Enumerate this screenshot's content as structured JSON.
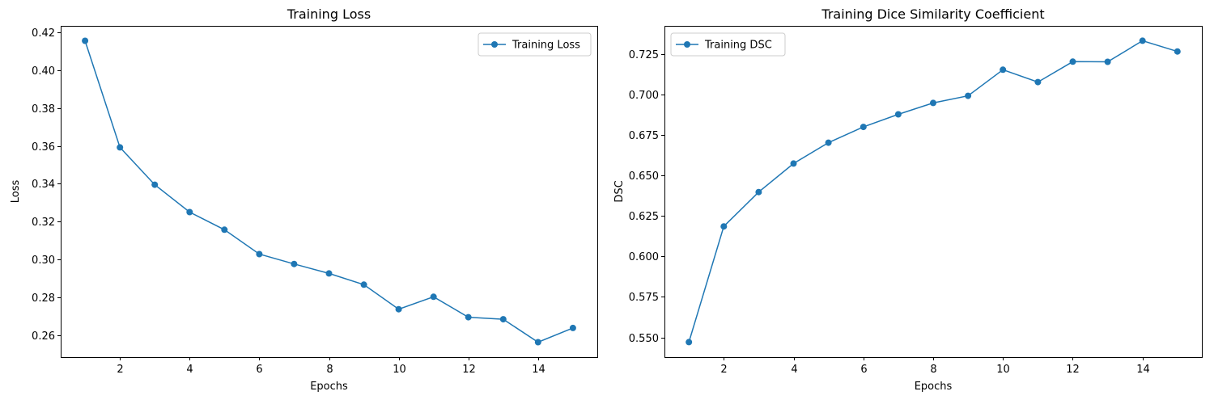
{
  "chart_data": [
    {
      "type": "line",
      "title": "Training Loss",
      "xlabel": "Epochs",
      "ylabel": "Loss",
      "x": [
        1,
        2,
        3,
        4,
        5,
        6,
        7,
        8,
        9,
        10,
        11,
        12,
        13,
        14,
        15
      ],
      "series": [
        {
          "name": "Training Loss",
          "values": [
            0.4155,
            0.3592,
            0.3395,
            0.325,
            0.3157,
            0.3028,
            0.2976,
            0.2926,
            0.2867,
            0.2737,
            0.2803,
            0.2695,
            0.2684,
            0.2563,
            0.2638
          ]
        }
      ],
      "xlim": [
        0.3,
        15.7
      ],
      "ylim": [
        0.2484,
        0.4234
      ],
      "xticks": [
        2,
        4,
        6,
        8,
        10,
        12,
        14
      ],
      "xtick_labels": [
        "2",
        "4",
        "6",
        "8",
        "10",
        "12",
        "14"
      ],
      "yticks": [
        0.26,
        0.28,
        0.3,
        0.32,
        0.34,
        0.36,
        0.38,
        0.4,
        0.42
      ],
      "ytick_labels": [
        "0.26",
        "0.28",
        "0.30",
        "0.32",
        "0.34",
        "0.36",
        "0.38",
        "0.40",
        "0.42"
      ],
      "legend": "top-right",
      "grid": false,
      "line_color": "#1f77b4",
      "marker": "circle"
    },
    {
      "type": "line",
      "title": "Training Dice Similarity Coefficient",
      "xlabel": "Epochs",
      "ylabel": "DSC",
      "x": [
        1,
        2,
        3,
        4,
        5,
        6,
        7,
        8,
        9,
        10,
        11,
        12,
        13,
        14,
        15
      ],
      "series": [
        {
          "name": "Training DSC",
          "values": [
            0.5471,
            0.6185,
            0.6397,
            0.6573,
            0.6702,
            0.6799,
            0.6877,
            0.6947,
            0.6991,
            0.7152,
            0.7076,
            0.7202,
            0.7201,
            0.7331,
            0.7265
          ]
        }
      ],
      "xlim": [
        0.3,
        15.7
      ],
      "ylim": [
        0.5378,
        0.7423
      ],
      "xticks": [
        2,
        4,
        6,
        8,
        10,
        12,
        14
      ],
      "xtick_labels": [
        "2",
        "4",
        "6",
        "8",
        "10",
        "12",
        "14"
      ],
      "yticks": [
        0.55,
        0.575,
        0.6,
        0.625,
        0.65,
        0.675,
        0.7,
        0.725
      ],
      "ytick_labels": [
        "0.550",
        "0.575",
        "0.600",
        "0.625",
        "0.650",
        "0.675",
        "0.700",
        "0.725"
      ],
      "legend": "top-left",
      "grid": false,
      "line_color": "#1f77b4",
      "marker": "circle"
    }
  ]
}
